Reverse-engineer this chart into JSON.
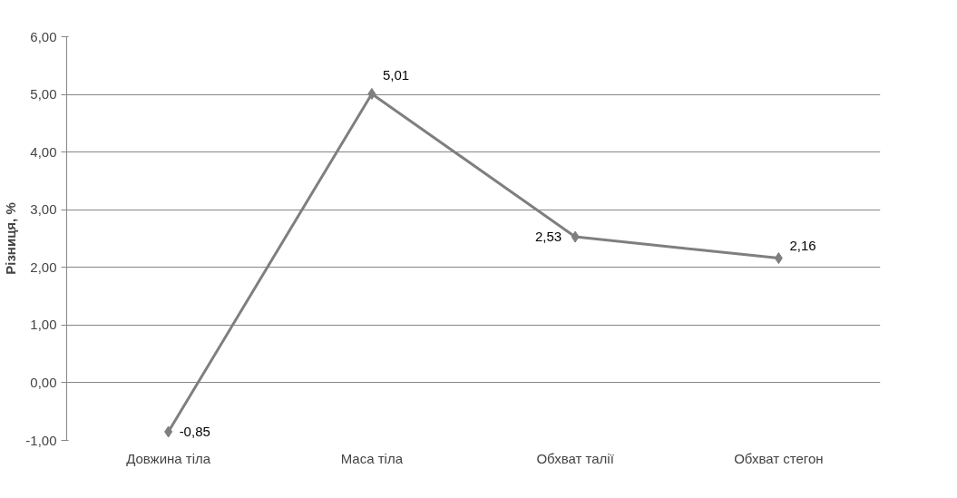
{
  "chart_data": {
    "type": "line",
    "ylabel": "Різниця, %",
    "categories": [
      "Довжина тіла",
      "Маса тіла",
      "Обхват талії",
      "Обхват стегон"
    ],
    "values": [
      -0.85,
      5.01,
      2.53,
      2.16
    ],
    "value_labels": [
      "-0,85",
      "5,01",
      "2,53",
      "2,16"
    ],
    "color": "#7f7f7f",
    "marker": "diamond",
    "line_style": "solid",
    "grid": "y",
    "ylim": [
      -1,
      6
    ],
    "yticks": [
      {
        "value": -1,
        "label": "-1,00"
      },
      {
        "value": 0,
        "label": "0,00"
      },
      {
        "value": 1,
        "label": "1,00"
      },
      {
        "value": 2,
        "label": "2,00"
      },
      {
        "value": 3,
        "label": "3,00"
      },
      {
        "value": 4,
        "label": "4,00"
      },
      {
        "value": 5,
        "label": "5,00"
      },
      {
        "value": 6,
        "label": "6,00"
      }
    ]
  }
}
